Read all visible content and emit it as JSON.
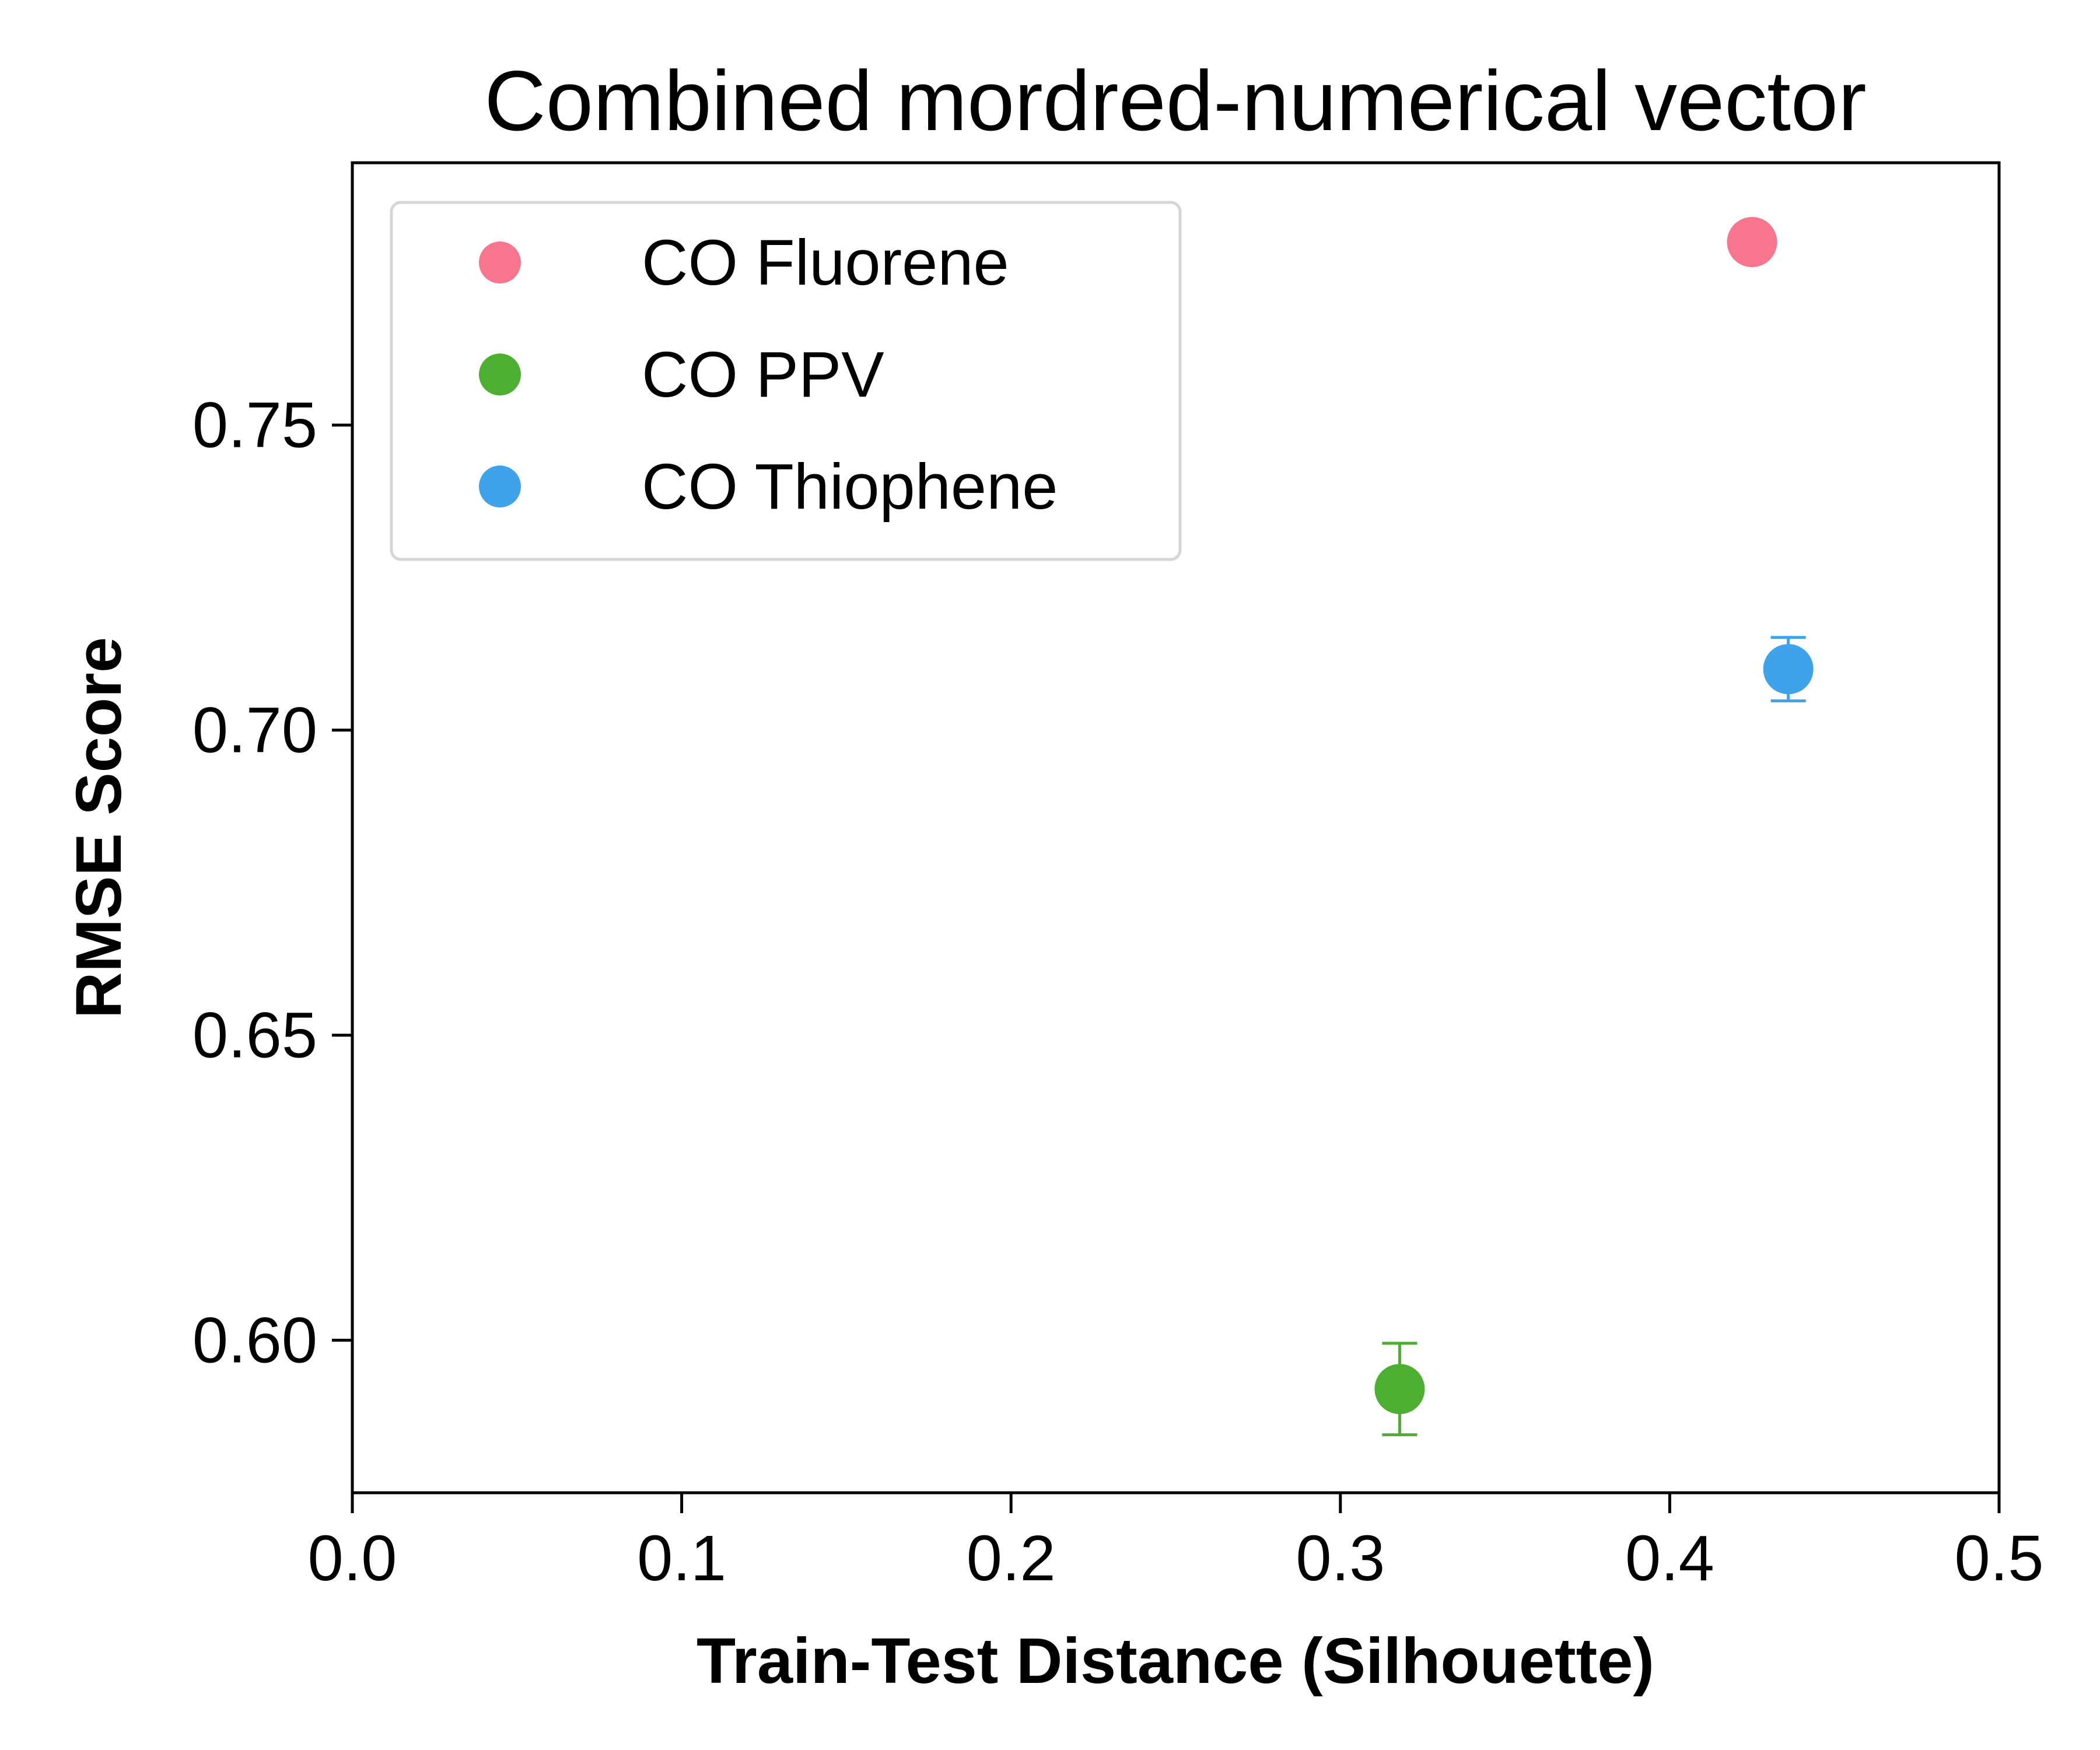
{
  "chart_data": {
    "type": "scatter",
    "title": "Combined mordred-numerical vector",
    "xlabel": "Train-Test Distance (Silhouette)",
    "ylabel": "RMSE Score",
    "xlim": [
      0.0,
      0.5
    ],
    "ylim": [
      0.575,
      0.793
    ],
    "xticks": [
      0.0,
      0.1,
      0.2,
      0.3,
      0.4,
      0.5
    ],
    "xtick_labels": [
      "0.0",
      "0.1",
      "0.2",
      "0.3",
      "0.4",
      "0.5"
    ],
    "yticks": [
      0.6,
      0.65,
      0.7,
      0.75
    ],
    "ytick_labels": [
      "0.60",
      "0.65",
      "0.70",
      "0.75"
    ],
    "grid": false,
    "legend_position": "top-left",
    "series": [
      {
        "name": "CO Fluorene",
        "color": "#f7768e",
        "x": 0.425,
        "y": 0.78,
        "yerr": 0.0
      },
      {
        "name": "CO PPV",
        "color": "#4caf32",
        "x": 0.318,
        "y": 0.592,
        "yerr": 0.0075
      },
      {
        "name": "CO Thiophene",
        "color": "#3ea3ea",
        "x": 0.436,
        "y": 0.71,
        "yerr": 0.0052
      }
    ]
  }
}
